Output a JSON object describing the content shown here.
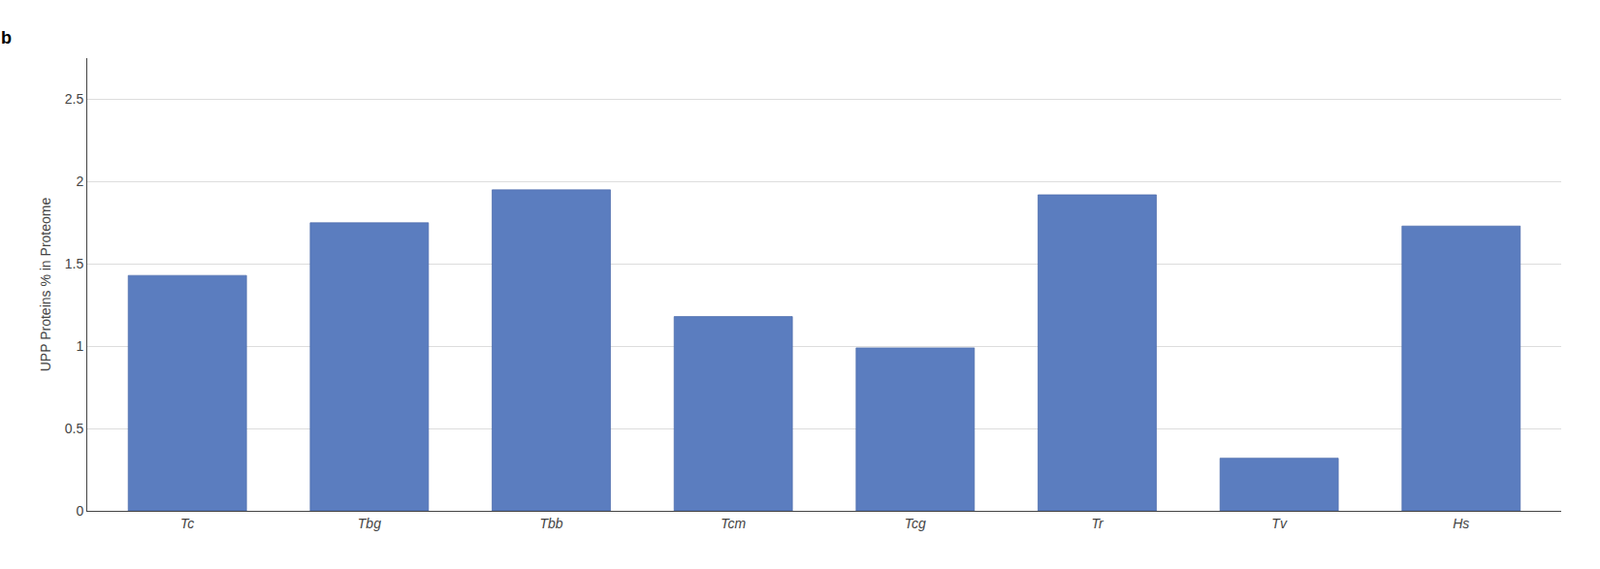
{
  "chart_data": {
    "type": "bar",
    "categories": [
      "Tc",
      "Tbg",
      "Tbb",
      "Tcm",
      "Tcg",
      "Tr",
      "Tv",
      "Hs"
    ],
    "values": [
      1.43,
      1.75,
      1.95,
      1.18,
      0.99,
      1.92,
      0.32,
      1.73
    ],
    "color": "#5B7DBF",
    "ylabel": "UPP Proteins % in Proteome",
    "ylim": [
      0,
      2.75
    ],
    "yticks": [
      0,
      0.5,
      1,
      1.5,
      2,
      2.5
    ],
    "grid": true,
    "annotations": [
      "b"
    ]
  }
}
